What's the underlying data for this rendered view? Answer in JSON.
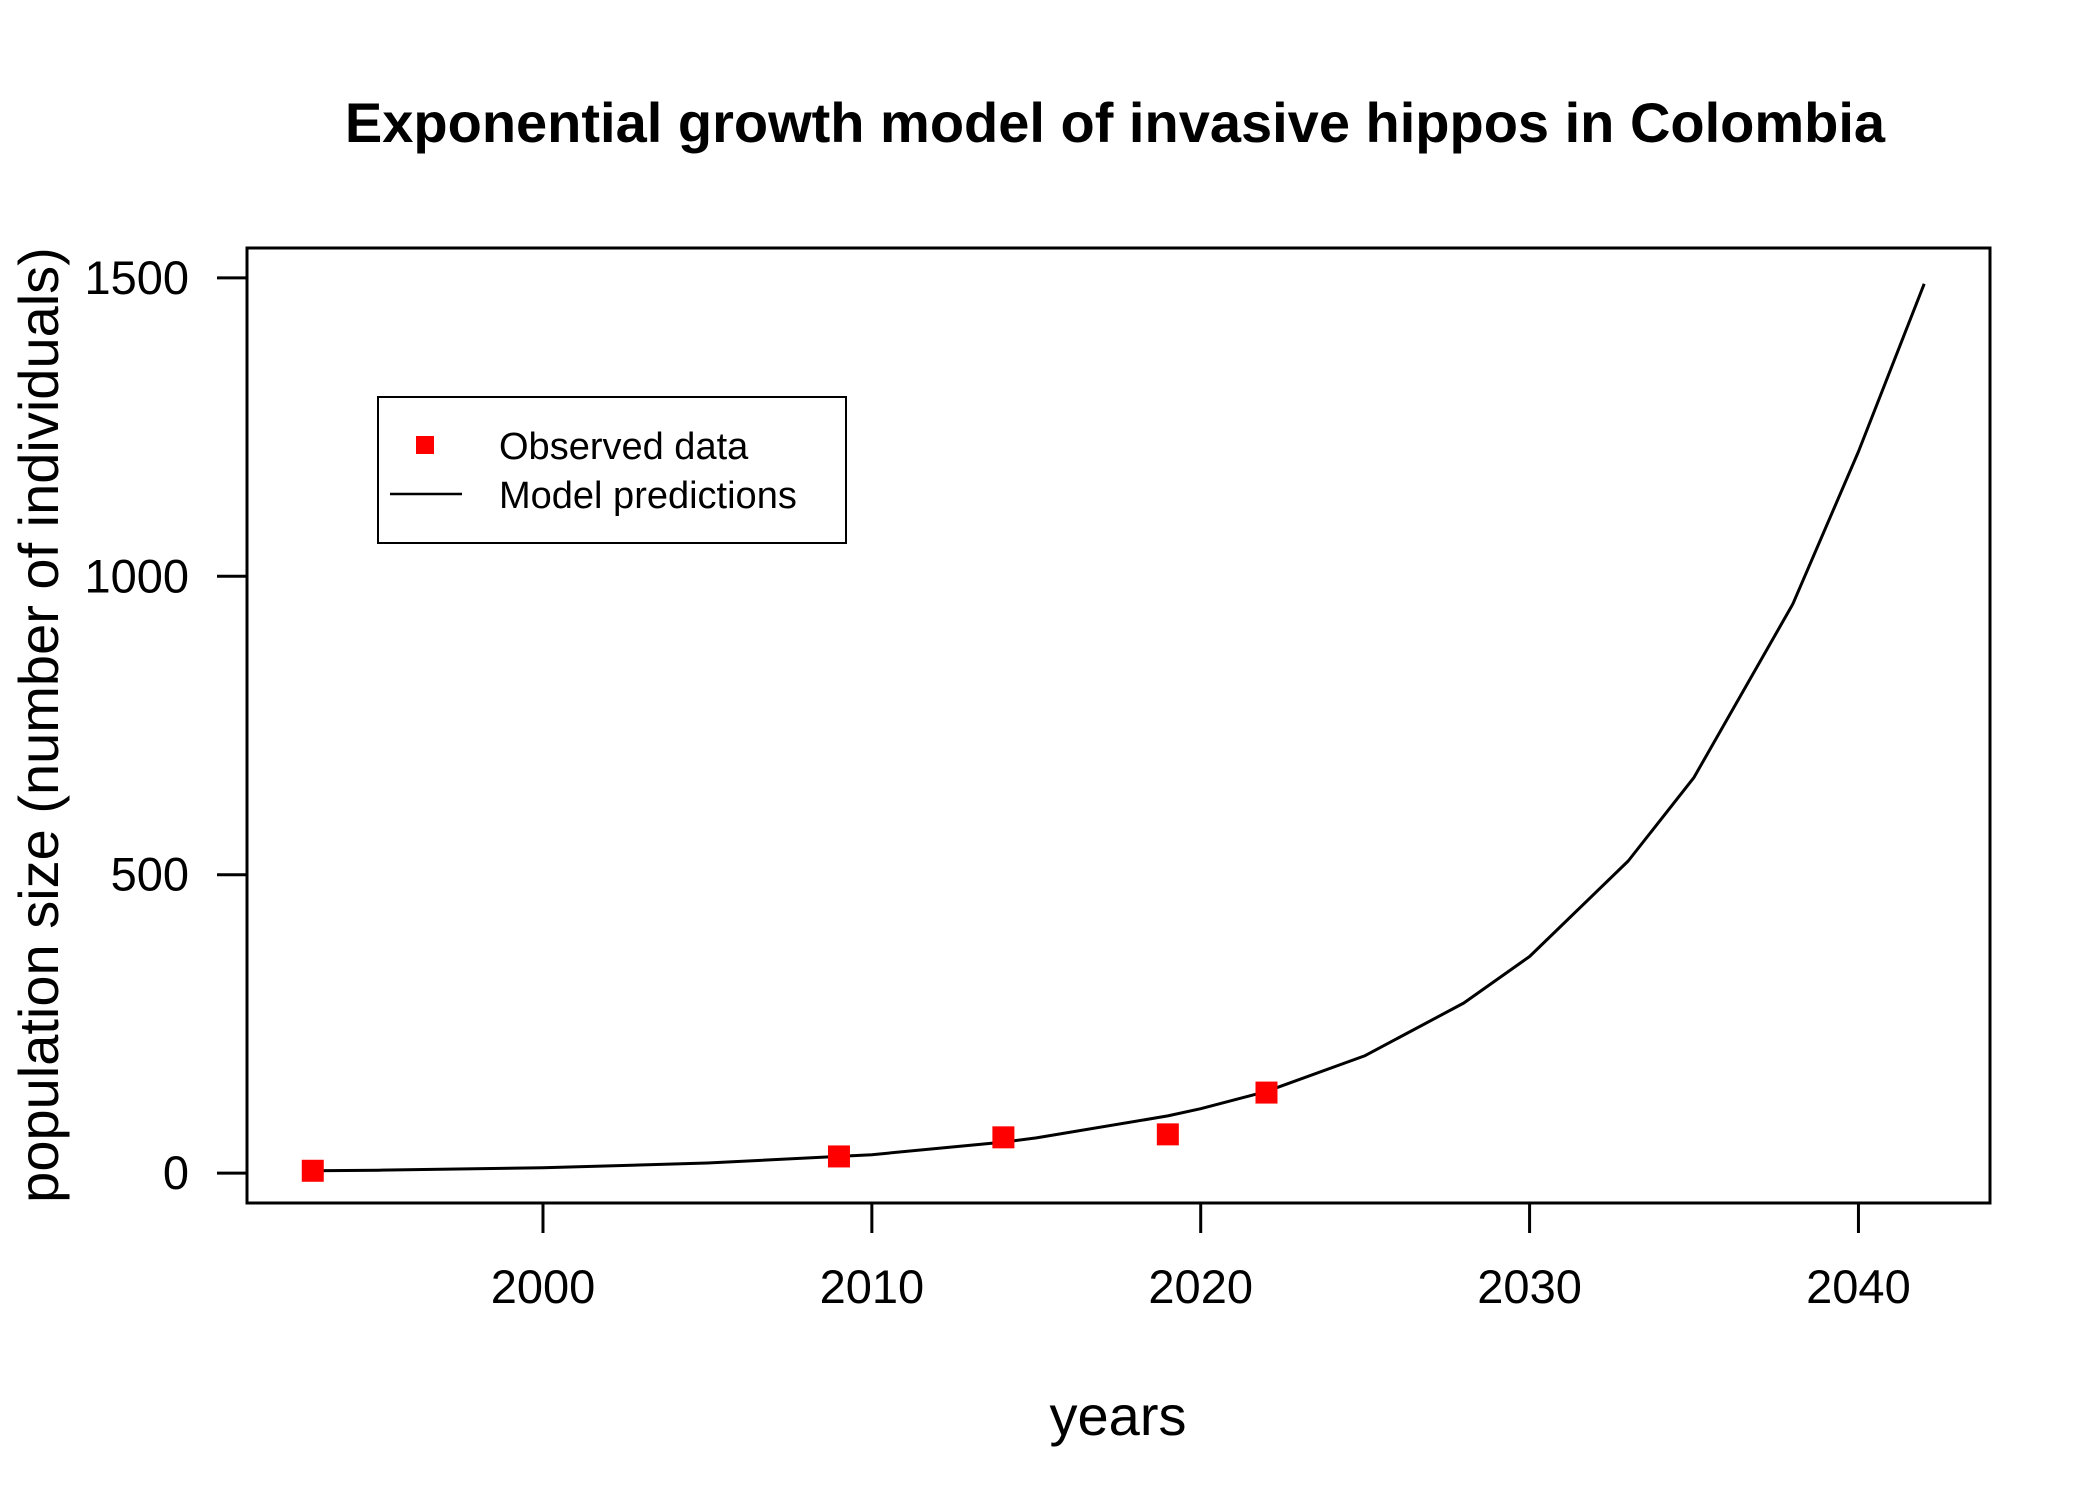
{
  "chart_data": {
    "type": "line",
    "title": "Exponential growth model of invasive hippos in Colombia",
    "xlabel": "years",
    "ylabel": "population size (number of individuals)",
    "xlim": [
      1991,
      2044
    ],
    "ylim": [
      -50,
      1550
    ],
    "xticks": [
      2000,
      2010,
      2020,
      2030,
      2040
    ],
    "yticks": [
      0,
      500,
      1000,
      1500
    ],
    "legend_position": "top-left",
    "grid": false,
    "observed": {
      "name": "Observed data",
      "color": "#ff0000",
      "x": [
        1993,
        2009,
        2014,
        2019,
        2022
      ],
      "y": [
        4,
        28,
        60,
        65,
        135
      ]
    },
    "model": {
      "name": "Model predictions",
      "color": "#000000",
      "x": [
        1993,
        1995,
        2000,
        2005,
        2009,
        2010,
        2014,
        2015,
        2019,
        2020,
        2022,
        2025,
        2028,
        2030,
        2033,
        2035,
        2038,
        2040,
        2042
      ],
      "y": [
        4,
        5,
        9,
        17,
        28,
        31,
        52,
        59,
        96,
        108,
        137,
        197,
        285,
        363,
        523,
        663,
        953,
        1209,
        1490
      ]
    }
  }
}
